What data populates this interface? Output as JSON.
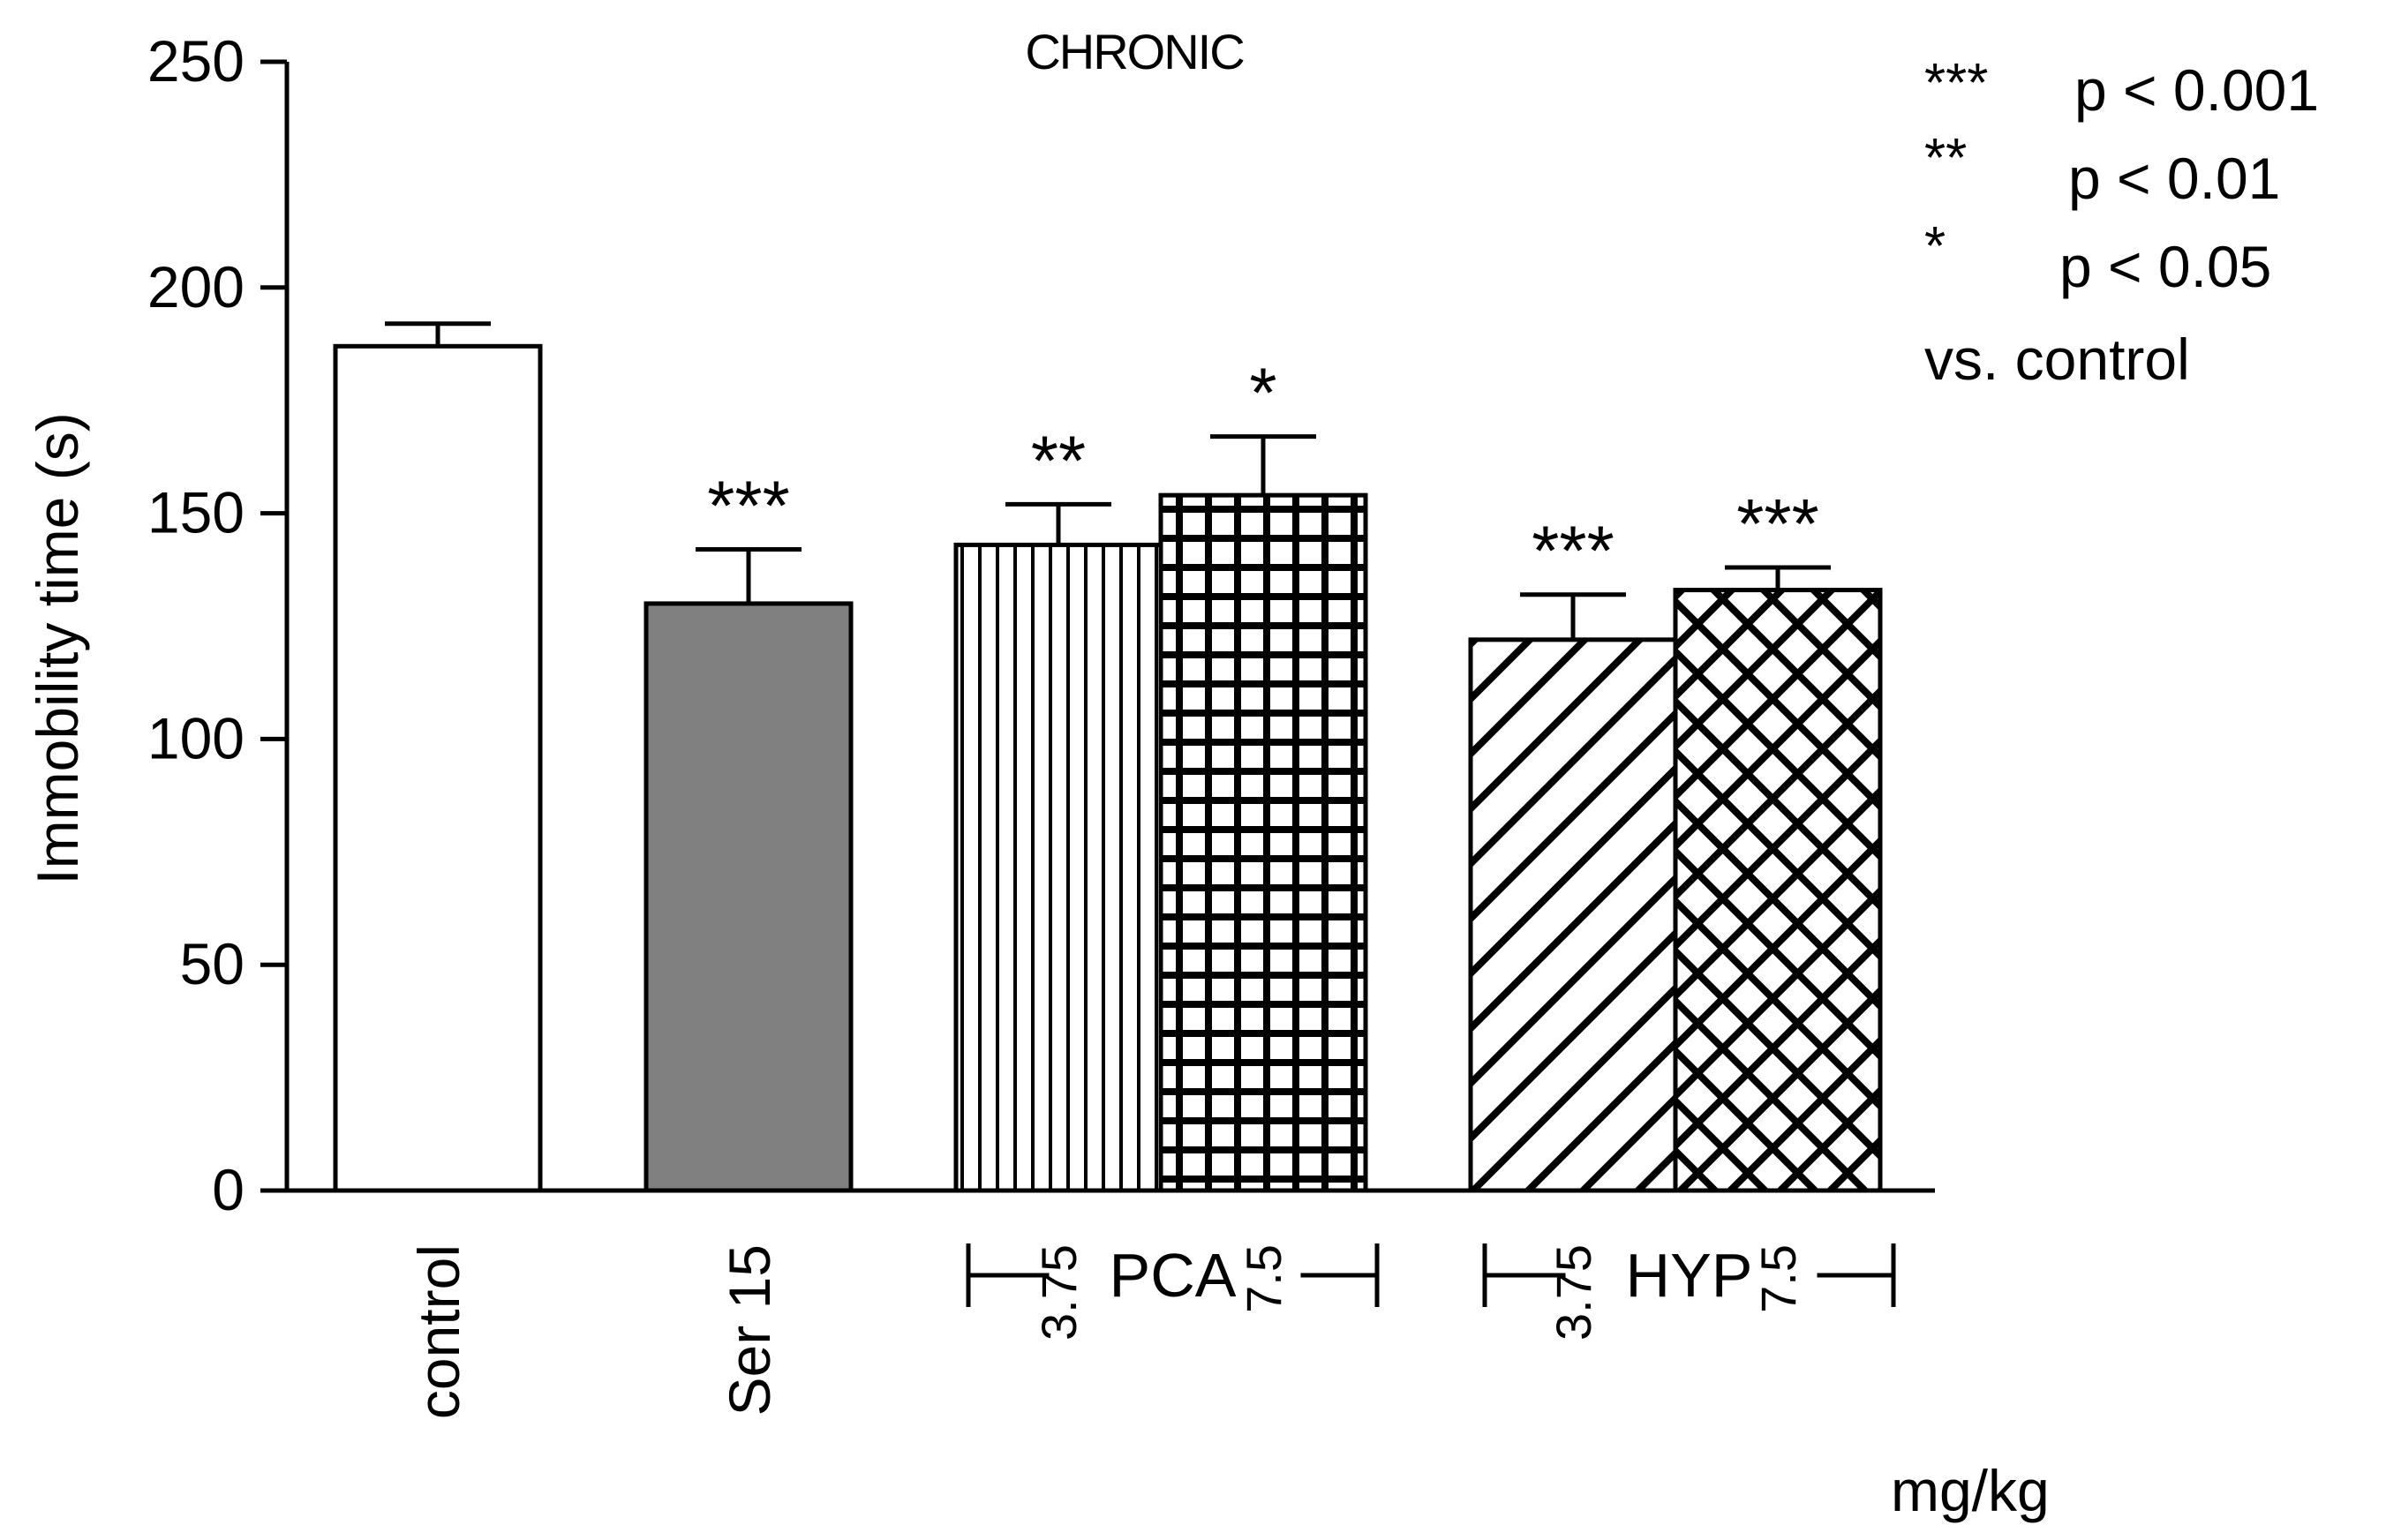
{
  "chart_data": {
    "type": "bar",
    "title": "CHRONIC",
    "ylabel": "Immobility time (s)",
    "xlabel": "",
    "unit_label": "mg/kg",
    "ylim": [
      0,
      250
    ],
    "yticks": [
      0,
      50,
      100,
      150,
      200,
      250
    ],
    "categories": [
      "control",
      "Ser 15",
      "3.75",
      "7.5",
      "3.75",
      "7.5"
    ],
    "values": [
      187,
      130,
      143,
      154,
      122,
      133
    ],
    "errors": [
      5,
      12,
      9,
      13,
      10,
      5
    ],
    "significance": [
      "",
      "***",
      "**",
      "*",
      "***",
      "***"
    ],
    "fills": [
      "white",
      "gray",
      "vertical-lines",
      "grid",
      "diagonal-lines",
      "crosshatch"
    ],
    "groups": [
      {
        "label": "PCA",
        "bar_indices": [
          2,
          3
        ]
      },
      {
        "label": "HYP",
        "bar_indices": [
          4,
          5
        ]
      }
    ],
    "legend": [
      {
        "stars": "***",
        "text": "p < 0.001"
      },
      {
        "stars": "**",
        "text": "p < 0.01"
      },
      {
        "stars": "*",
        "text": "p < 0.05"
      },
      {
        "stars": "",
        "text": "vs. control"
      }
    ],
    "colors": {
      "gray_fill": "#808080",
      "line": "#000000",
      "background": "#ffffff"
    }
  }
}
